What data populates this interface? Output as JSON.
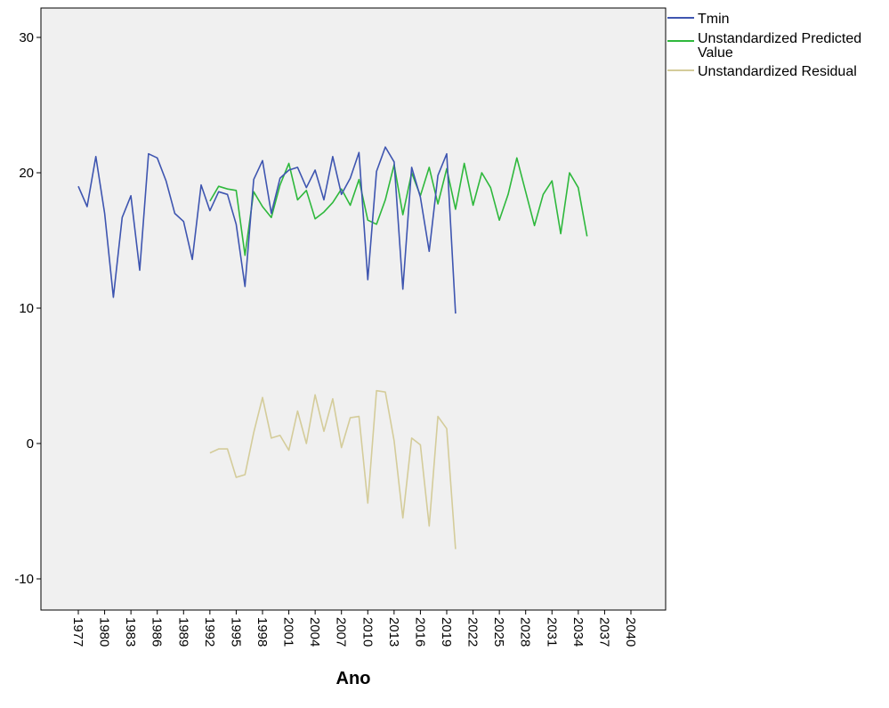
{
  "chart_data": {
    "type": "line",
    "xlabel": "Ano",
    "ylabel": "",
    "title": "",
    "xlim": [
      1976,
      2042
    ],
    "ylim": [
      -12.3,
      32.2
    ],
    "x_ticks": [
      1977,
      1980,
      1983,
      1986,
      1989,
      1992,
      1995,
      1998,
      2001,
      2004,
      2007,
      2010,
      2013,
      2016,
      2019,
      2022,
      2025,
      2028,
      2031,
      2034,
      2037,
      2040
    ],
    "y_ticks": [
      -10,
      0,
      10,
      20,
      30
    ],
    "grid": false,
    "legend_position": "top-right outside",
    "background": "#f0f0f0",
    "series": [
      {
        "name": "Tmin",
        "color": "#3e55b0",
        "x": [
          1977,
          1978,
          1979,
          1980,
          1981,
          1982,
          1983,
          1984,
          1985,
          1986,
          1987,
          1988,
          1989,
          1990,
          1991,
          1992,
          1993,
          1994,
          1995,
          1996,
          1997,
          1998,
          1999,
          2000,
          2001,
          2002,
          2003,
          2004,
          2005,
          2006,
          2007,
          2008,
          2009,
          2010,
          2011,
          2012,
          2013,
          2014,
          2015,
          2016,
          2017,
          2018,
          2019,
          2020
        ],
        "values": [
          19.0,
          17.5,
          21.2,
          17.0,
          10.8,
          16.7,
          18.3,
          12.8,
          21.4,
          21.1,
          19.4,
          17.0,
          16.4,
          13.6,
          19.1,
          17.2,
          18.6,
          18.4,
          16.2,
          11.6,
          19.5,
          20.9,
          17.0,
          19.6,
          20.2,
          20.4,
          18.9,
          20.2,
          18.0,
          21.2,
          18.4,
          19.6,
          21.5,
          12.1,
          20.1,
          21.9,
          20.8,
          11.4,
          20.4,
          18.2,
          14.2,
          19.8,
          21.4,
          9.6
        ]
      },
      {
        "name": "Unstandardized Predicted Value",
        "color": "#2eb83c",
        "x": [
          1992,
          1993,
          1994,
          1995,
          1996,
          1997,
          1998,
          1999,
          2000,
          2001,
          2002,
          2003,
          2004,
          2005,
          2006,
          2007,
          2008,
          2009,
          2010,
          2011,
          2012,
          2013,
          2014,
          2015,
          2016,
          2017,
          2018,
          2019,
          2020,
          2021,
          2022,
          2023,
          2024,
          2025,
          2026,
          2027,
          2028,
          2029,
          2030,
          2031,
          2032,
          2033,
          2034,
          2035
        ],
        "values": [
          17.9,
          19.0,
          18.8,
          18.7,
          13.9,
          18.6,
          17.5,
          16.7,
          19.1,
          20.7,
          18.0,
          18.7,
          16.6,
          17.1,
          17.8,
          18.8,
          17.6,
          19.5,
          16.5,
          16.2,
          18.0,
          20.6,
          16.9,
          20.0,
          18.3,
          20.4,
          17.7,
          20.3,
          17.3,
          20.7,
          17.6,
          20.0,
          18.9,
          16.5,
          18.4,
          21.1,
          18.6,
          16.1,
          18.4,
          19.4,
          15.5,
          20.0,
          18.9,
          15.3
        ]
      },
      {
        "name": "Unstandardized Residual",
        "color": "#d4cc9a",
        "x": [
          1992,
          1993,
          1994,
          1995,
          1996,
          1997,
          1998,
          1999,
          2000,
          2001,
          2002,
          2003,
          2004,
          2005,
          2006,
          2007,
          2008,
          2009,
          2010,
          2011,
          2012,
          2013,
          2014,
          2015,
          2016,
          2017,
          2018,
          2019,
          2020
        ],
        "values": [
          -0.7,
          -0.4,
          -0.4,
          -2.5,
          -2.3,
          0.8,
          3.4,
          0.4,
          0.6,
          -0.5,
          2.4,
          0.0,
          3.6,
          0.9,
          3.3,
          -0.3,
          1.9,
          2.0,
          -4.4,
          3.9,
          3.8,
          0.2,
          -5.5,
          0.4,
          -0.1,
          -6.1,
          2.0,
          1.1,
          -7.8
        ]
      }
    ]
  }
}
